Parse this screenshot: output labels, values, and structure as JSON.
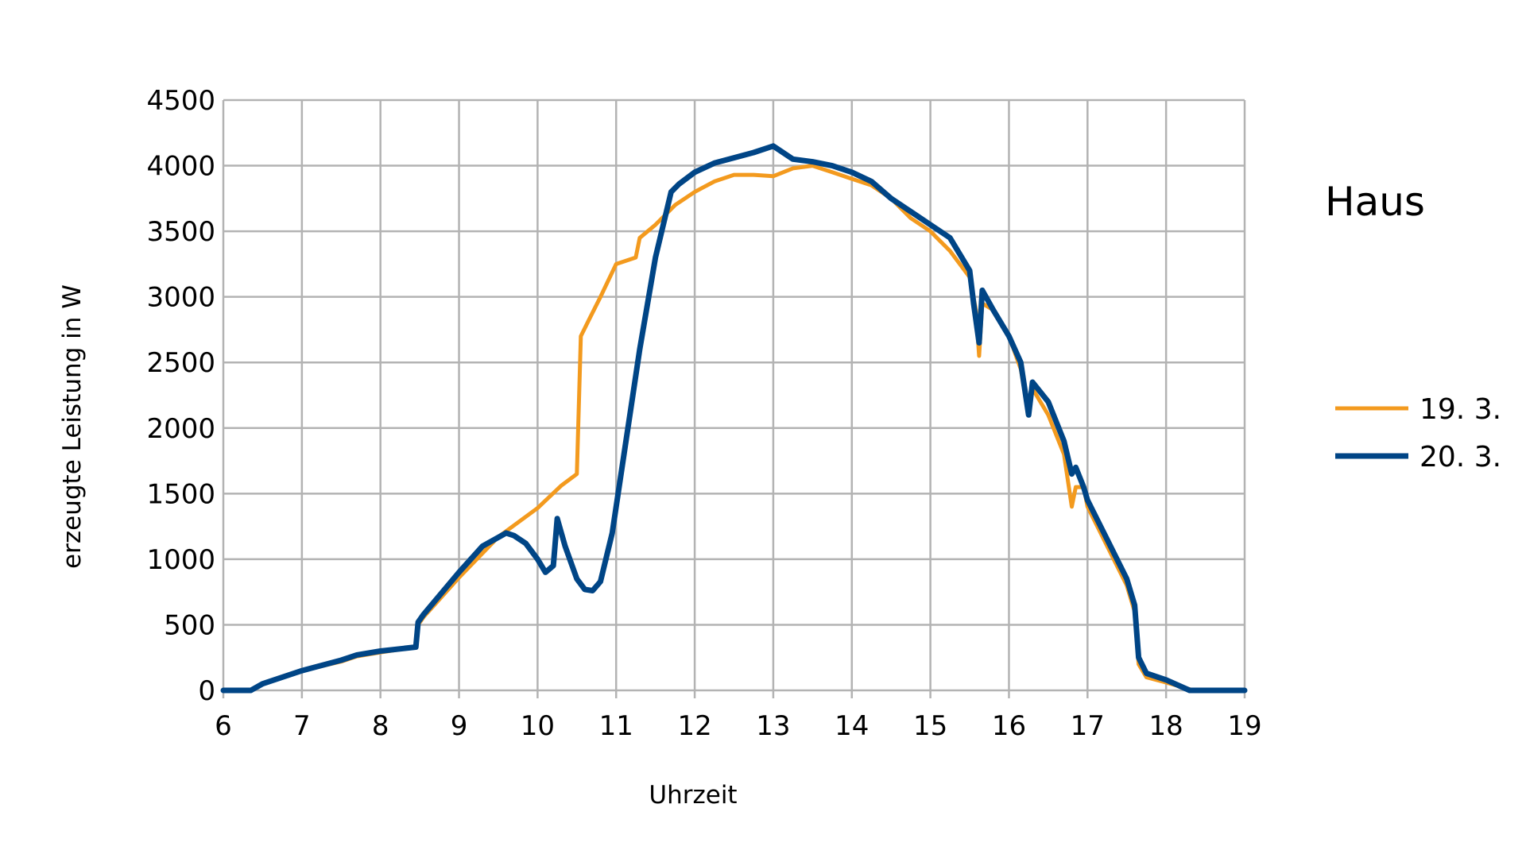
{
  "chart_data": {
    "type": "line",
    "title": "Haus",
    "xlabel": "Uhrzeit",
    "ylabel": "erzeugte Leistung in W",
    "xlim": [
      6,
      19
    ],
    "ylim": [
      0,
      4500
    ],
    "x_ticks": [
      6,
      7,
      8,
      9,
      10,
      11,
      12,
      13,
      14,
      15,
      16,
      17,
      18,
      19
    ],
    "y_ticks": [
      0,
      500,
      1000,
      1500,
      2000,
      2500,
      3000,
      3500,
      4000,
      4500
    ],
    "grid": true,
    "legend_position": "right",
    "series": [
      {
        "name": "19. 3.",
        "color": "#f39a1e",
        "x": [
          6,
          6.35,
          6.5,
          7,
          7.5,
          7.7,
          8,
          8.45,
          8.48,
          8.55,
          9,
          9.5,
          10,
          10.3,
          10.5,
          10.55,
          10.65,
          10.8,
          11,
          11.25,
          11.3,
          11.5,
          11.75,
          12,
          12.25,
          12.5,
          12.75,
          13,
          13.25,
          13.5,
          13.75,
          14,
          14.25,
          14.5,
          14.75,
          15,
          15.25,
          15.5,
          15.58,
          15.62,
          15.66,
          15.8,
          16,
          16.15,
          16.25,
          16.3,
          16.5,
          16.7,
          16.8,
          16.85,
          16.95,
          17,
          17.25,
          17.5,
          17.6,
          17.65,
          17.75,
          18,
          18.35,
          19
        ],
        "values": [
          0,
          0,
          50,
          150,
          220,
          260,
          290,
          330,
          500,
          560,
          860,
          1170,
          1390,
          1560,
          1650,
          2700,
          2820,
          3000,
          3250,
          3300,
          3450,
          3550,
          3700,
          3800,
          3880,
          3930,
          3930,
          3920,
          3980,
          4000,
          3950,
          3900,
          3850,
          3750,
          3600,
          3500,
          3350,
          3150,
          2900,
          2550,
          2950,
          2900,
          2700,
          2450,
          2100,
          2300,
          2100,
          1800,
          1400,
          1550,
          1550,
          1400,
          1100,
          800,
          600,
          200,
          100,
          60,
          0,
          0
        ]
      },
      {
        "name": "20. 3.",
        "color": "#004586",
        "x": [
          6,
          6.35,
          6.5,
          7,
          7.5,
          7.7,
          8,
          8.45,
          8.48,
          8.55,
          9,
          9.3,
          9.6,
          9.7,
          9.85,
          10,
          10.1,
          10.2,
          10.25,
          10.35,
          10.5,
          10.6,
          10.7,
          10.8,
          10.95,
          11.1,
          11.3,
          11.5,
          11.7,
          11.8,
          12,
          12.25,
          12.5,
          12.75,
          13,
          13.25,
          13.5,
          13.75,
          14,
          14.25,
          14.5,
          14.75,
          15,
          15.25,
          15.5,
          15.55,
          15.62,
          15.66,
          15.8,
          16,
          16.15,
          16.25,
          16.3,
          16.5,
          16.7,
          16.8,
          16.85,
          16.95,
          17,
          17.25,
          17.5,
          17.6,
          17.65,
          17.75,
          18,
          18.3,
          19
        ],
        "values": [
          0,
          0,
          50,
          150,
          230,
          270,
          300,
          330,
          520,
          580,
          900,
          1100,
          1200,
          1180,
          1120,
          1000,
          900,
          950,
          1310,
          1100,
          850,
          770,
          760,
          830,
          1200,
          1800,
          2600,
          3300,
          3800,
          3860,
          3950,
          4020,
          4060,
          4100,
          4150,
          4050,
          4030,
          4000,
          3950,
          3880,
          3750,
          3650,
          3550,
          3450,
          3200,
          2950,
          2650,
          3050,
          2900,
          2700,
          2500,
          2100,
          2350,
          2200,
          1900,
          1650,
          1700,
          1550,
          1450,
          1150,
          850,
          650,
          250,
          130,
          80,
          0,
          0
        ]
      }
    ]
  }
}
